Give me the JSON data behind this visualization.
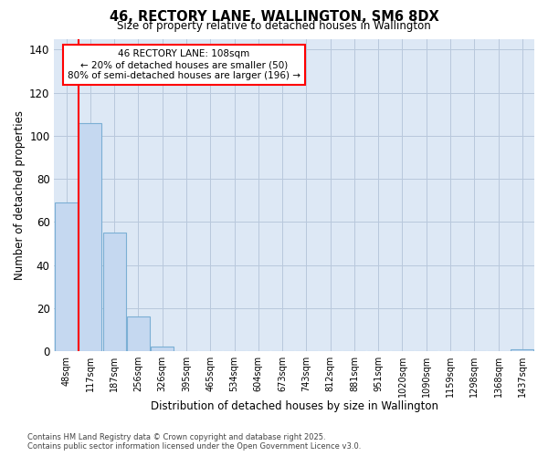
{
  "title1": "46, RECTORY LANE, WALLINGTON, SM6 8DX",
  "title2": "Size of property relative to detached houses in Wallington",
  "xlabel": "Distribution of detached houses by size in Wallington",
  "ylabel": "Number of detached properties",
  "categories": [
    "48sqm",
    "117sqm",
    "187sqm",
    "256sqm",
    "326sqm",
    "395sqm",
    "465sqm",
    "534sqm",
    "604sqm",
    "673sqm",
    "743sqm",
    "812sqm",
    "881sqm",
    "951sqm",
    "1020sqm",
    "1090sqm",
    "1159sqm",
    "1298sqm",
    "1368sqm",
    "1437sqm"
  ],
  "values": [
    69,
    106,
    55,
    16,
    2,
    0,
    0,
    0,
    0,
    0,
    0,
    0,
    0,
    0,
    0,
    0,
    0,
    0,
    0,
    1
  ],
  "bar_color": "#c5d8f0",
  "bar_edge_color": "#7bafd4",
  "grid_color": "#b8c8dc",
  "bg_color": "#dde8f5",
  "annotation_line1": "46 RECTORY LANE: 108sqm",
  "annotation_line2": "← 20% of detached houses are smaller (50)",
  "annotation_line3": "80% of semi-detached houses are larger (196) →",
  "ylim": [
    0,
    145
  ],
  "yticks": [
    0,
    20,
    40,
    60,
    80,
    100,
    120,
    140
  ],
  "red_line_x": 0.5,
  "footer1": "Contains HM Land Registry data © Crown copyright and database right 2025.",
  "footer2": "Contains public sector information licensed under the Open Government Licence v3.0."
}
